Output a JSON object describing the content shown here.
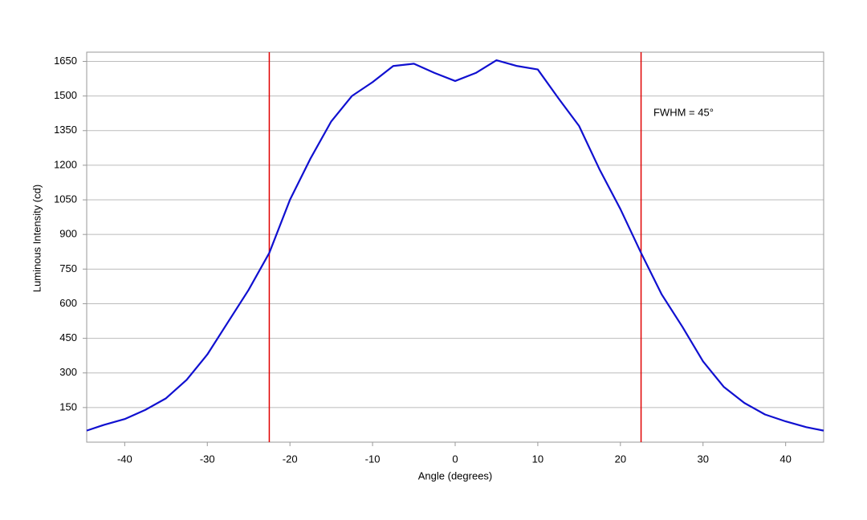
{
  "chart_data": {
    "type": "line",
    "x_label": "Angle (degrees)",
    "y_label": "Luminous Intensity (cd)",
    "annotation": "FWHM = 45°",
    "annotation_at": [
      24,
      1425
    ],
    "x": [
      -44.6,
      -42.5,
      -40,
      -37.5,
      -35,
      -32.5,
      -30,
      -27.5,
      -25,
      -22.5,
      -20,
      -17.5,
      -15,
      -12.5,
      -10,
      -7.5,
      -5,
      -2.5,
      0,
      2.5,
      5,
      7.5,
      10,
      12.5,
      15,
      17.5,
      20,
      22.5,
      25,
      27.5,
      30,
      32.5,
      35,
      37.5,
      40,
      42.5,
      44.6
    ],
    "series": [
      {
        "color": "#1010d0",
        "values": [
          50,
          75,
          100,
          140,
          190,
          270,
          380,
          520,
          660,
          820,
          1050,
          1230,
          1390,
          1500,
          1560,
          1630,
          1640,
          1600,
          1565,
          1600,
          1655,
          1630,
          1615,
          1490,
          1370,
          1180,
          1010,
          820,
          640,
          500,
          350,
          240,
          170,
          120,
          90,
          65,
          50
        ]
      }
    ],
    "vlines": [
      -22.5,
      22.5
    ],
    "vline_color": "#e00000",
    "xlim": [
      -44.6,
      44.6
    ],
    "ylim": [
      0,
      1690
    ],
    "xticks": [
      -40,
      -30,
      -20,
      -10,
      0,
      10,
      20,
      30,
      40
    ],
    "yticks": [
      150,
      300,
      450,
      600,
      750,
      900,
      1050,
      1200,
      1350,
      1500,
      1650
    ],
    "grid": true
  }
}
